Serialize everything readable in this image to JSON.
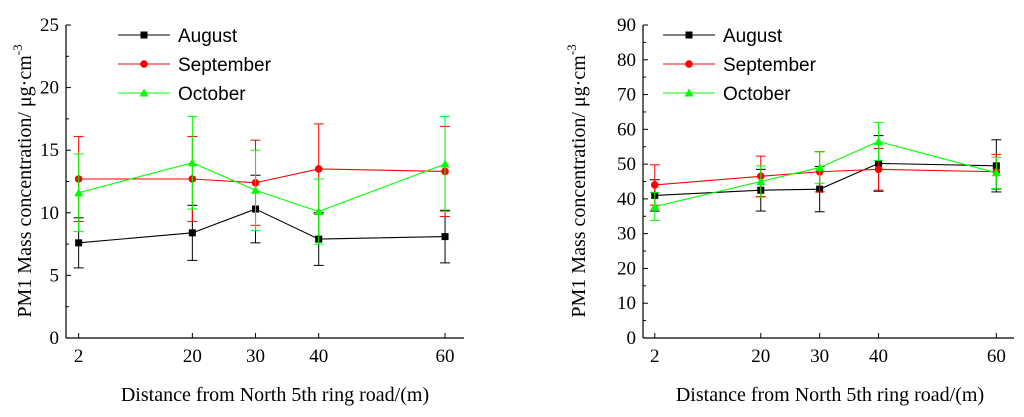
{
  "chart_data": [
    {
      "type": "line",
      "title": "",
      "xlabel": "Distance from North 5th ring road/(m)",
      "ylabel": "PM1 Mass concentration/ μg·cm",
      "ylabel_sup": "-3",
      "x": [
        2,
        20,
        30,
        40,
        60
      ],
      "x_ticks": [
        "2",
        "20",
        "30",
        "40",
        "60"
      ],
      "ylim": [
        0,
        25
      ],
      "y_ticks": [
        0,
        5,
        10,
        15,
        20,
        25
      ],
      "legend_position": "top-left",
      "series": [
        {
          "name": "August",
          "color": "#000000",
          "marker": "square",
          "values": [
            7.6,
            8.4,
            10.3,
            7.9,
            8.1
          ],
          "errors": [
            2.0,
            2.2,
            2.7,
            2.1,
            2.1
          ]
        },
        {
          "name": "September",
          "color": "#ff0000",
          "marker": "circle",
          "values": [
            12.7,
            12.7,
            12.4,
            13.5,
            13.3
          ],
          "errors": [
            3.4,
            3.4,
            3.4,
            3.6,
            3.6
          ]
        },
        {
          "name": "October",
          "color": "#00ff00",
          "marker": "triangle",
          "values": [
            11.6,
            14.0,
            11.8,
            10.1,
            13.9
          ],
          "errors": [
            3.1,
            3.7,
            3.2,
            2.6,
            3.8
          ]
        }
      ]
    },
    {
      "type": "line",
      "title": "",
      "xlabel": "Distance from North 5th ring road/(m)",
      "ylabel": "PM1 Mass concentration/ μg·cm",
      "ylabel_sup": "-3",
      "x": [
        2,
        20,
        30,
        40,
        60
      ],
      "x_ticks": [
        "2",
        "20",
        "30",
        "40",
        "60"
      ],
      "ylim": [
        0,
        90
      ],
      "y_ticks": [
        0,
        10,
        20,
        30,
        40,
        50,
        60,
        70,
        80,
        90
      ],
      "legend_position": "top-left",
      "series": [
        {
          "name": "August",
          "color": "#000000",
          "marker": "square",
          "values": [
            41,
            42.5,
            42.8,
            50.2,
            49.5
          ],
          "errors": [
            4.5,
            6.0,
            6.5,
            8.0,
            7.5
          ]
        },
        {
          "name": "September",
          "color": "#ff0000",
          "marker": "circle",
          "values": [
            44,
            46.5,
            47.8,
            48.5,
            47.8
          ],
          "errors": [
            5.8,
            5.8,
            5.8,
            6.0,
            5.0
          ]
        },
        {
          "name": "October",
          "color": "#00ff00",
          "marker": "triangle",
          "values": [
            37.8,
            45,
            49,
            56.5,
            47.5
          ],
          "errors": [
            4.0,
            4.5,
            4.5,
            5.5,
            4.5
          ]
        }
      ]
    }
  ]
}
